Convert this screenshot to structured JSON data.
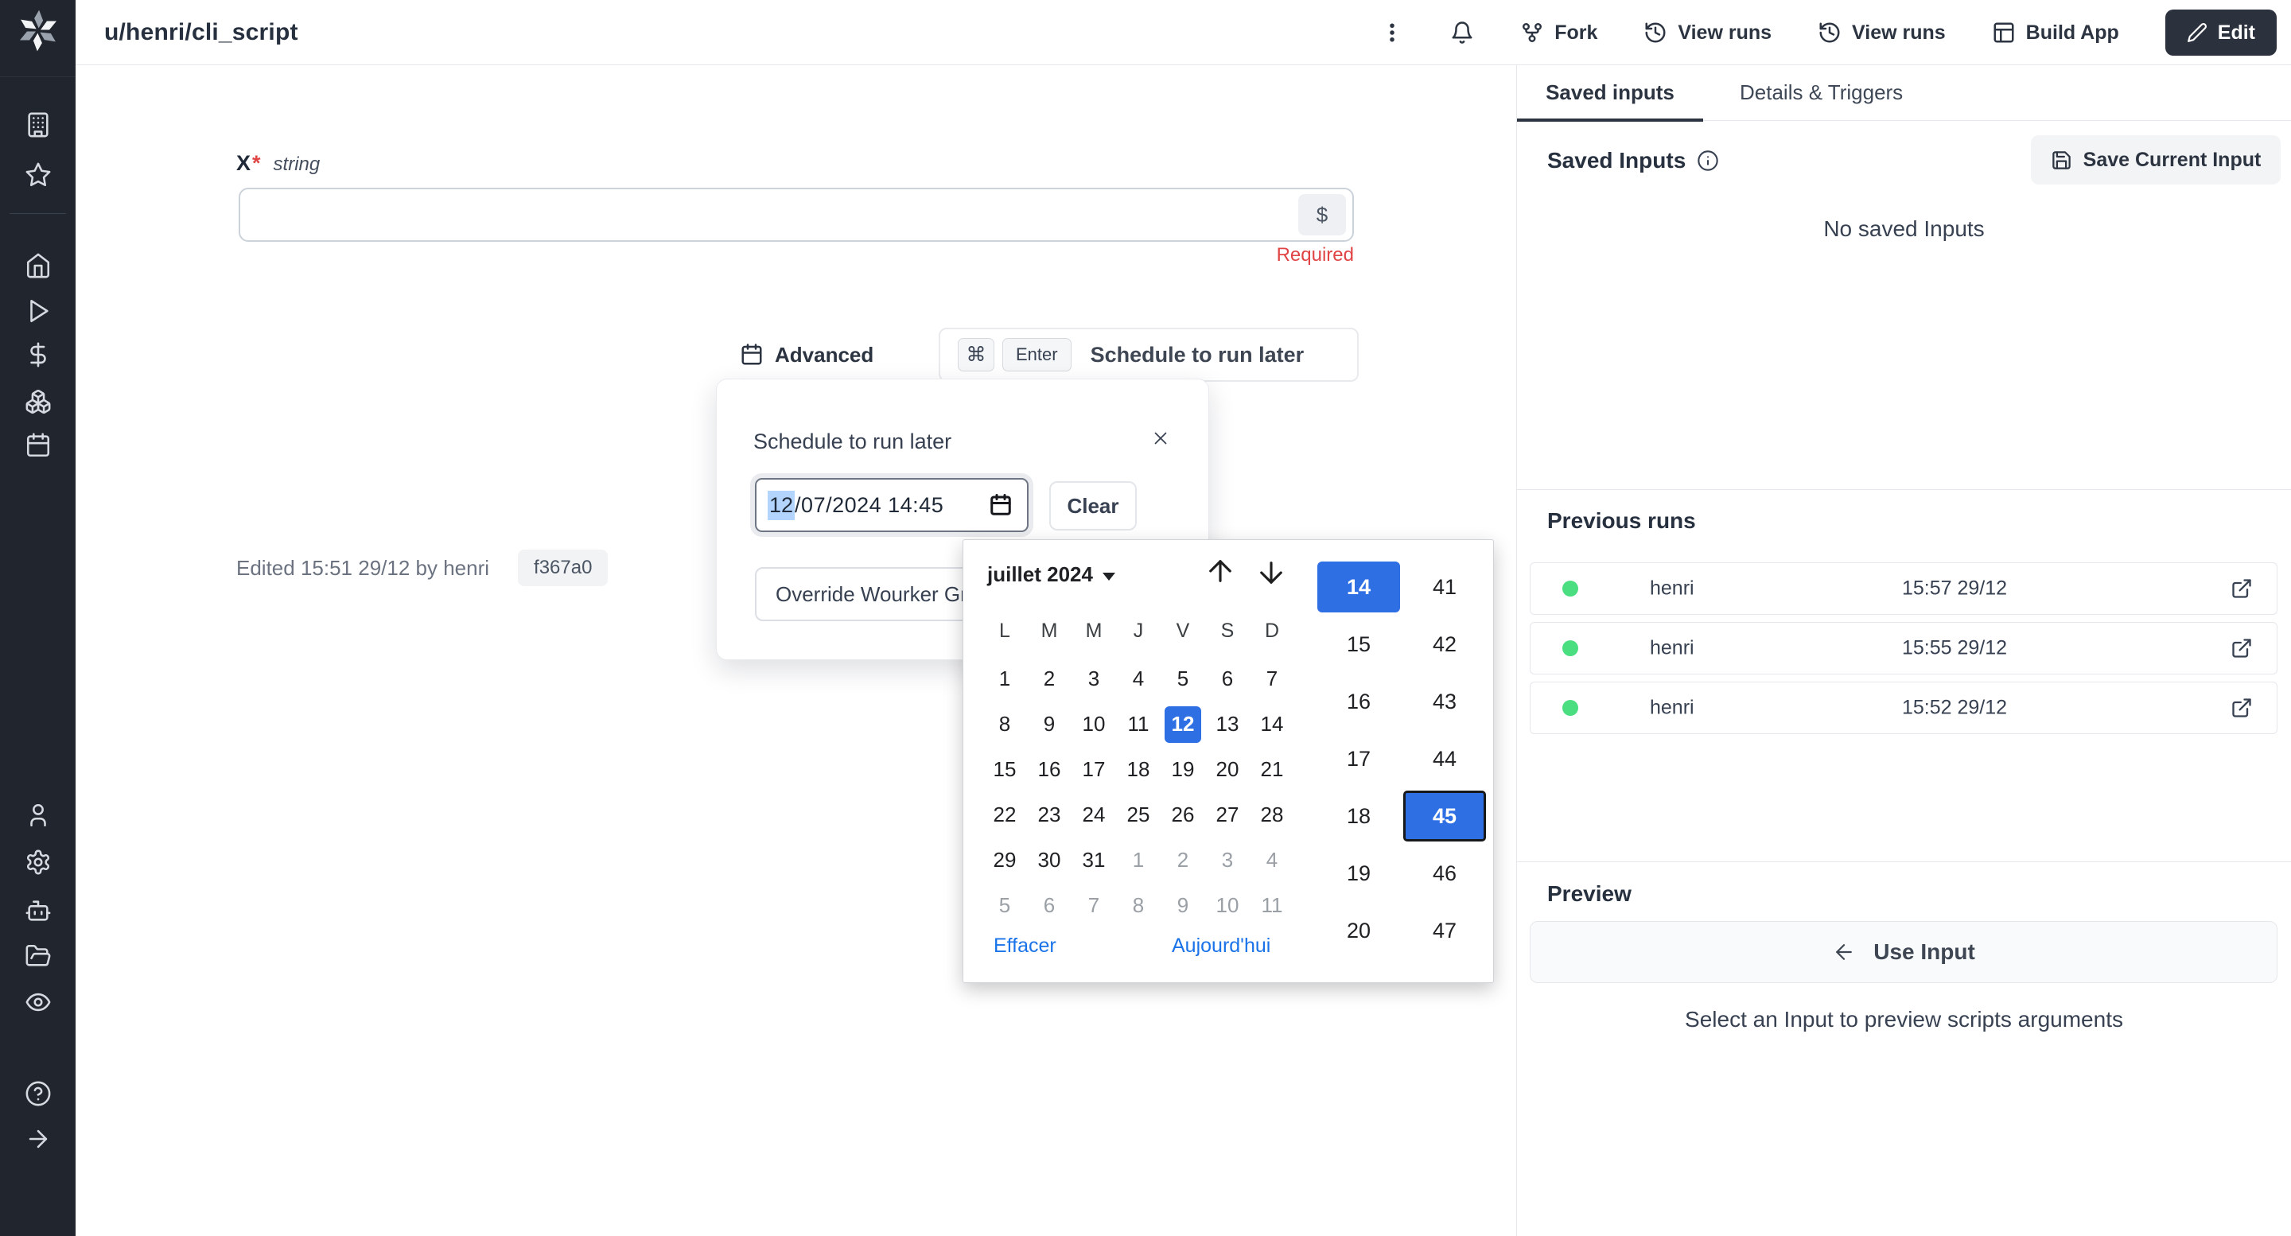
{
  "app": {
    "title": "u/henri/cli_script"
  },
  "header": {
    "kebab_icon": "kebab-menu-icon",
    "bell_icon": "bell-icon",
    "buttons": [
      {
        "label": "Fork",
        "icon": "git-fork-icon"
      },
      {
        "label": "View runs",
        "icon": "history-icon"
      },
      {
        "label": "View runs",
        "icon": "history-icon"
      },
      {
        "label": "Build App",
        "icon": "layout-icon"
      }
    ],
    "edit_button": {
      "label": "Edit",
      "icon": "pencil-icon"
    }
  },
  "sidebar": {
    "icons": [
      "windmill-logo",
      "building-icon",
      "star-icon",
      "home-icon",
      "play-icon",
      "dollar-icon",
      "boxes-icon",
      "calendar-icon",
      "user-icon",
      "gear-icon",
      "robot-icon",
      "folder-open-icon",
      "eye-icon",
      "help-icon",
      "arrow-right-icon"
    ]
  },
  "form": {
    "field_label": "X",
    "required_star": "*",
    "field_type": "string",
    "dollar_button": "$",
    "required_error": "Required",
    "advanced_label": "Advanced",
    "schedule_button": {
      "cmd_key": "⌘",
      "enter_key": "Enter",
      "label": "Schedule to run later"
    },
    "edited_note": "Edited 15:51 29/12 by henri",
    "hash_badge": "f367a0"
  },
  "schedule_popup": {
    "title": "Schedule to run later",
    "datetime_selected_part": "12",
    "datetime_rest": "/07/2024 14:45",
    "clear_button": "Clear",
    "override_select": "Override Wourker Group"
  },
  "datepicker": {
    "month_label": "juillet 2024",
    "weekdays": [
      "L",
      "M",
      "M",
      "J",
      "V",
      "S",
      "D"
    ],
    "weeks": [
      [
        "1",
        "2",
        "3",
        "4",
        "5",
        "6",
        "7"
      ],
      [
        "8",
        "9",
        "10",
        "11",
        "12",
        "13",
        "14"
      ],
      [
        "15",
        "16",
        "17",
        "18",
        "19",
        "20",
        "21"
      ],
      [
        "22",
        "23",
        "24",
        "25",
        "26",
        "27",
        "28"
      ],
      [
        "29",
        "30",
        "31",
        "1*",
        "2*",
        "3*",
        "4*"
      ],
      [
        "5*",
        "6*",
        "7*",
        "8*",
        "9*",
        "10*",
        "11*"
      ]
    ],
    "selected_day": "12",
    "hours": [
      "14",
      "15",
      "16",
      "17",
      "18",
      "19",
      "20"
    ],
    "selected_hour": "14",
    "minutes": [
      "41",
      "42",
      "43",
      "44",
      "45",
      "46",
      "47"
    ],
    "selected_minute": "45",
    "clear_link": "Effacer",
    "today_link": "Aujourd'hui"
  },
  "right_panel": {
    "tabs": [
      {
        "label": "Saved inputs",
        "active": true
      },
      {
        "label": "Details & Triggers",
        "active": false
      }
    ],
    "saved_inputs": {
      "heading": "Saved Inputs",
      "save_button": "Save Current Input",
      "empty_text": "No saved Inputs"
    },
    "previous_runs": {
      "heading": "Previous runs",
      "runs": [
        {
          "status": "success",
          "user": "henri",
          "time": "15:57 29/12"
        },
        {
          "status": "success",
          "user": "henri",
          "time": "15:55 29/12"
        },
        {
          "status": "success",
          "user": "henri",
          "time": "15:52 29/12"
        }
      ]
    },
    "preview": {
      "heading": "Preview",
      "use_input_button": "Use Input",
      "hint": "Select an Input to preview scripts arguments"
    }
  },
  "colors": {
    "sidebar_bg": "#21262e",
    "accent_blue": "#2f6fe4",
    "link_blue": "#1a73e8",
    "selection_blue": "#b3d4fc",
    "danger_red": "#e04444",
    "success_green": "#4ade80",
    "dark_navy": "#2b3440"
  }
}
